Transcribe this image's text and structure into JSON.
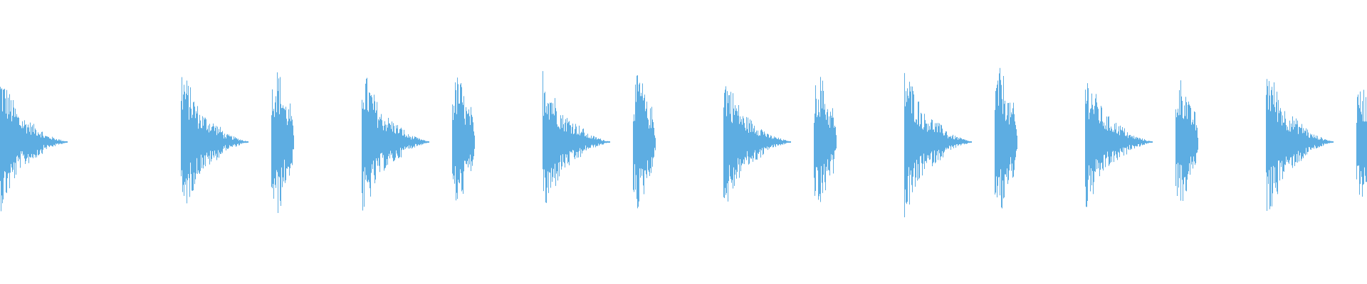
{
  "chart_data": {
    "type": "waveform",
    "color": "#5dade2",
    "background": "#ffffff",
    "grid": false,
    "axes": false,
    "legend": "none",
    "amplitude_range": [
      -1,
      1
    ],
    "burst_pattern": [
      "long",
      "long",
      "short",
      "long",
      "short",
      "long",
      "short",
      "long",
      "short",
      "long",
      "short",
      "long",
      "short",
      "long",
      "short"
    ],
    "bursts": [
      {
        "kind": "long",
        "peak": 0.8
      },
      {
        "kind": "long",
        "peak": 0.88
      },
      {
        "kind": "short",
        "peak": 0.84
      },
      {
        "kind": "long",
        "peak": 0.88
      },
      {
        "kind": "short",
        "peak": 0.76
      },
      {
        "kind": "long",
        "peak": 0.86
      },
      {
        "kind": "short",
        "peak": 0.78
      },
      {
        "kind": "long",
        "peak": 0.82
      },
      {
        "kind": "short",
        "peak": 0.78
      },
      {
        "kind": "long",
        "peak": 0.88
      },
      {
        "kind": "short",
        "peak": 0.84
      },
      {
        "kind": "long",
        "peak": 0.82
      },
      {
        "kind": "short",
        "peak": 0.74
      },
      {
        "kind": "long",
        "peak": 0.92
      },
      {
        "kind": "short",
        "peak": 0.64
      }
    ]
  }
}
